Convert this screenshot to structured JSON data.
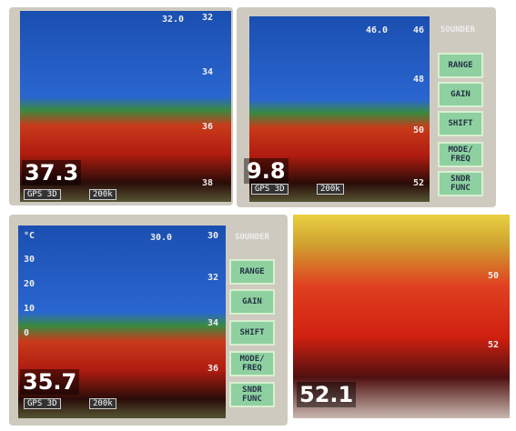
{
  "panels": [
    {
      "top_depth": "32.0",
      "scale": [
        "32",
        "34",
        "36",
        "38"
      ],
      "depth": "37.3",
      "status": [
        "GPS 3D",
        "200k"
      ]
    },
    {
      "top_depth": "46.0",
      "title": "SOUNDER",
      "scale": [
        "46",
        "48",
        "50",
        "52"
      ],
      "buttons": [
        "RANGE",
        "GAIN",
        "SHIFT",
        "MODE/\nFREQ",
        "SNDR\nFUNC"
      ],
      "depth": "9.8",
      "status": [
        "GPS 3D",
        "200k"
      ]
    },
    {
      "temp_unit": "°C",
      "temp_scale": [
        "30",
        "20",
        "10",
        "0"
      ],
      "top_depth": "30.0",
      "title": "SOUNDER",
      "scale": [
        "30",
        "32",
        "34",
        "36"
      ],
      "buttons": [
        "RANGE",
        "GAIN",
        "SHIFT",
        "MODE/\nFREQ",
        "SNDR\nFUNC"
      ],
      "depth": "35.7",
      "status": [
        "GPS 3D",
        "200k"
      ]
    },
    {
      "scale": [
        "50",
        "52"
      ],
      "depth": "52.1"
    }
  ]
}
